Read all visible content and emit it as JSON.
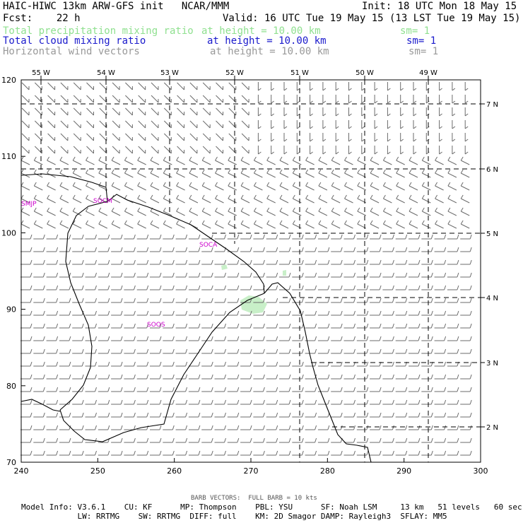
{
  "header": {
    "title": "HAIC-HIWC 13km ARW-GFS init   NCAR/MMM",
    "init": "Init: 18 UTC Mon 18 May 15",
    "fcst": "Fcst:    22 h",
    "valid": "Valid: 16 UTC Tue 19 May 15 (13 LST Tue 19 May 15)"
  },
  "fields": [
    {
      "name": "Total precipitation mixing ratio",
      "height": "at height = 10.00 km",
      "sm": "sm= 1",
      "color": "#8fe08f"
    },
    {
      "name": "Total cloud mixing ratio",
      "height": "at height = 10.00 km",
      "sm": "sm= 1",
      "color": "#1a1acc"
    },
    {
      "name": "Horizontal wind vectors",
      "height": "at height = 10.00 km",
      "sm": "sm= 1",
      "color": "#999999"
    }
  ],
  "map": {
    "x_ticks": [
      "240",
      "250",
      "260",
      "270",
      "280",
      "290",
      "300"
    ],
    "y_ticks": [
      "70",
      "80",
      "90",
      "100",
      "110",
      "120"
    ],
    "lon_labels": [
      "55 W",
      "54 W",
      "53 W",
      "52 W",
      "51 W",
      "50 W",
      "49 W"
    ],
    "lat_labels": [
      "7 N",
      "6 N",
      "5 N",
      "4 N",
      "3 N",
      "2 N"
    ],
    "stations": [
      "SMJP",
      "SOCM",
      "SOCA",
      "SOOS"
    ],
    "colors": {
      "precip": "#c8efc8",
      "station": "#cc00cc",
      "barb": "#6b6b6b",
      "coast": "#000000"
    }
  },
  "footer": {
    "barb_note": "BARB VECTORS:  FULL BARB = 10 kts",
    "line1": "Model Info: V3.6.1    CU: KF      MP: Thompson    PBL: YSU      SF: Noah LSM     13 km   51 levels   60 sec",
    "line2": "            LW: RRTMG    SW: RRTMG  DIFF: full    KM: 2D Smagor DAMP: Rayleigh3  SFLAY: MM5"
  }
}
